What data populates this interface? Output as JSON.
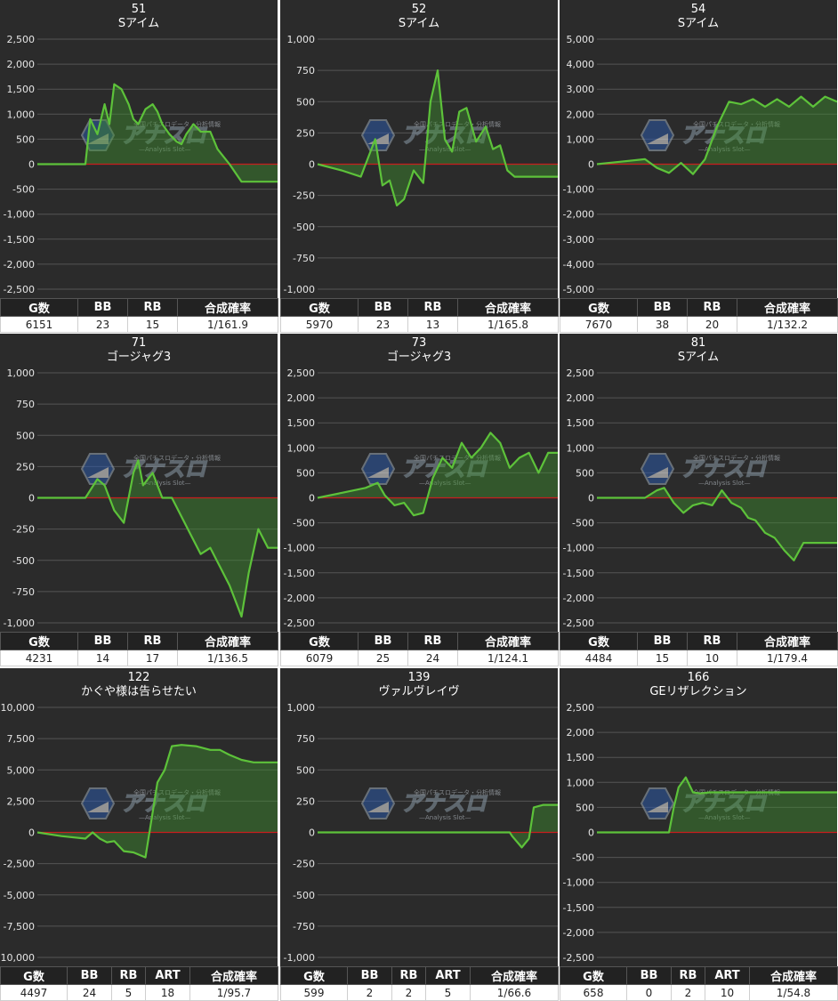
{
  "colors": {
    "line": "#5dc23a",
    "fill": "#3f8f2e",
    "zero": "#c81e1e",
    "grid": "#555555",
    "bg": "#2b2b2b"
  },
  "watermark": {
    "brand": "アナスロ",
    "sub": "—Analysis Slot—",
    "top": "全国パチスロデータ・分析情報"
  },
  "chart_data": [
    {
      "type": "line",
      "number": "51",
      "name": "Sアイム",
      "ylim": [
        -2500,
        2500
      ],
      "yticks": [
        -2500,
        -2000,
        -1500,
        -1000,
        -500,
        0,
        500,
        1000,
        1500,
        2000,
        2500
      ],
      "ytick_labels": [
        "-2,500",
        "-2,000",
        "-1,500",
        "-1,000",
        "-500",
        "0",
        "500",
        "1,000",
        "1,500",
        "2,000",
        "2,500"
      ],
      "x": [
        0,
        5,
        10,
        15,
        20,
        22,
        25,
        28,
        30,
        32,
        35,
        38,
        40,
        42,
        45,
        48,
        50,
        52,
        55,
        58,
        60,
        62,
        65,
        68,
        70,
        72,
        75,
        80,
        85,
        90,
        95,
        100
      ],
      "y": [
        0,
        0,
        0,
        0,
        0,
        900,
        600,
        1200,
        800,
        1600,
        1500,
        1200,
        900,
        800,
        1100,
        1200,
        1050,
        800,
        600,
        450,
        400,
        600,
        800,
        650,
        650,
        650,
        300,
        0,
        -350,
        -350,
        -350,
        -350
      ],
      "headers": [
        "G数",
        "BB",
        "RB",
        "合成確率"
      ],
      "stats": [
        "6151",
        "23",
        "15",
        "1/161.9"
      ]
    },
    {
      "type": "line",
      "number": "52",
      "name": "Sアイム",
      "ylim": [
        -1000,
        1000
      ],
      "yticks": [
        -1000,
        -750,
        -500,
        -250,
        0,
        250,
        500,
        750,
        1000
      ],
      "ytick_labels": [
        "-1,000",
        "-750",
        "-500",
        "-250",
        "0",
        "250",
        "500",
        "750",
        "1,000"
      ],
      "x": [
        0,
        10,
        18,
        24,
        27,
        30,
        33,
        36,
        40,
        44,
        47,
        50,
        53,
        56,
        59,
        62,
        66,
        70,
        73,
        76,
        79,
        82,
        86,
        90,
        95,
        100
      ],
      "y": [
        0,
        -50,
        -100,
        200,
        -170,
        -130,
        -330,
        -280,
        -50,
        -150,
        500,
        750,
        200,
        100,
        420,
        450,
        180,
        300,
        120,
        150,
        -50,
        -100,
        -100,
        -100,
        -100,
        -100
      ],
      "headers": [
        "G数",
        "BB",
        "RB",
        "合成確率"
      ],
      "stats": [
        "5970",
        "23",
        "13",
        "1/165.8"
      ]
    },
    {
      "type": "line",
      "number": "54",
      "name": "Sアイム",
      "ylim": [
        -5000,
        5000
      ],
      "yticks": [
        -5000,
        -4000,
        -3000,
        -2000,
        -1000,
        0,
        1000,
        2000,
        3000,
        4000,
        5000
      ],
      "ytick_labels": [
        "-5,000",
        "-4,000",
        "-3,000",
        "-2,000",
        "-1,000",
        "0",
        "1,000",
        "2,000",
        "3,000",
        "4,000",
        "5,000"
      ],
      "x": [
        0,
        10,
        20,
        25,
        30,
        35,
        40,
        45,
        50,
        55,
        60,
        65,
        70,
        75,
        80,
        85,
        90,
        95,
        100
      ],
      "y": [
        0,
        100,
        200,
        -150,
        -350,
        50,
        -400,
        200,
        1500,
        2500,
        2400,
        2600,
        2300,
        2600,
        2300,
        2700,
        2300,
        2700,
        2500
      ],
      "headers": [
        "G数",
        "BB",
        "RB",
        "合成確率"
      ],
      "stats": [
        "7670",
        "38",
        "20",
        "1/132.2"
      ]
    },
    {
      "type": "line",
      "number": "71",
      "name": "ゴージャグ3",
      "ylim": [
        -1000,
        1000
      ],
      "yticks": [
        -1000,
        -750,
        -500,
        -250,
        0,
        250,
        500,
        750,
        1000
      ],
      "ytick_labels": [
        "-1,000",
        "-750",
        "-500",
        "-250",
        "0",
        "250",
        "500",
        "750",
        "1,000"
      ],
      "x": [
        0,
        10,
        20,
        25,
        28,
        32,
        36,
        40,
        42,
        44,
        48,
        52,
        56,
        60,
        64,
        68,
        72,
        76,
        80,
        83,
        85,
        88,
        92,
        96,
        100
      ],
      "y": [
        0,
        0,
        0,
        150,
        100,
        -100,
        -200,
        200,
        300,
        100,
        200,
        0,
        0,
        -150,
        -300,
        -450,
        -400,
        -550,
        -700,
        -850,
        -950,
        -600,
        -250,
        -400,
        -400
      ],
      "headers": [
        "G数",
        "BB",
        "RB",
        "合成確率"
      ],
      "stats": [
        "4231",
        "14",
        "17",
        "1/136.5"
      ]
    },
    {
      "type": "line",
      "number": "73",
      "name": "ゴージャグ3",
      "ylim": [
        -2500,
        2500
      ],
      "yticks": [
        -2500,
        -2000,
        -1500,
        -1000,
        -500,
        0,
        500,
        1000,
        1500,
        2000,
        2500
      ],
      "ytick_labels": [
        "-2,500",
        "-2,000",
        "-1,500",
        "-1,000",
        "-500",
        "0",
        "500",
        "1,000",
        "1,500",
        "2,000",
        "2,500"
      ],
      "x": [
        0,
        10,
        20,
        25,
        28,
        32,
        36,
        40,
        44,
        48,
        52,
        56,
        60,
        64,
        68,
        72,
        76,
        80,
        84,
        88,
        92,
        96,
        100
      ],
      "y": [
        0,
        100,
        200,
        300,
        50,
        -150,
        -100,
        -350,
        -300,
        400,
        800,
        600,
        1100,
        800,
        1000,
        1300,
        1100,
        600,
        800,
        900,
        500,
        900,
        900
      ],
      "headers": [
        "G数",
        "BB",
        "RB",
        "合成確率"
      ],
      "stats": [
        "6079",
        "25",
        "24",
        "1/124.1"
      ]
    },
    {
      "type": "line",
      "number": "81",
      "name": "Sアイム",
      "ylim": [
        -2500,
        2500
      ],
      "yticks": [
        -2500,
        -2000,
        -1500,
        -1000,
        -500,
        0,
        500,
        1000,
        1500,
        2000,
        2500
      ],
      "ytick_labels": [
        "-2,500",
        "-2,000",
        "-1,500",
        "-1,000",
        "-500",
        "0",
        "500",
        "1,000",
        "1,500",
        "2,000",
        "2,500"
      ],
      "x": [
        0,
        10,
        20,
        25,
        28,
        32,
        36,
        40,
        44,
        48,
        52,
        56,
        60,
        63,
        66,
        70,
        74,
        78,
        82,
        86,
        90,
        95,
        100
      ],
      "y": [
        0,
        0,
        0,
        150,
        200,
        -100,
        -300,
        -150,
        -100,
        -150,
        150,
        -100,
        -200,
        -400,
        -450,
        -700,
        -800,
        -1050,
        -1250,
        -900,
        -900,
        -900,
        -900
      ],
      "headers": [
        "G数",
        "BB",
        "RB",
        "合成確率"
      ],
      "stats": [
        "4484",
        "15",
        "10",
        "1/179.4"
      ]
    },
    {
      "type": "line",
      "number": "122",
      "name": "かぐや様は告らせたい",
      "ylim": [
        -10000,
        10000
      ],
      "yticks": [
        -10000,
        -7500,
        -5000,
        -2500,
        0,
        2500,
        5000,
        7500,
        10000
      ],
      "ytick_labels": [
        "-10,000",
        "-7,500",
        "-5,000",
        "-2,500",
        "0",
        "2,500",
        "5,000",
        "7,500",
        "10,000"
      ],
      "x": [
        0,
        10,
        20,
        23,
        26,
        29,
        32,
        36,
        40,
        45,
        50,
        53,
        56,
        60,
        66,
        72,
        76,
        80,
        85,
        90,
        95,
        100
      ],
      "y": [
        0,
        -300,
        -500,
        0,
        -500,
        -800,
        -700,
        -1500,
        -1600,
        -2000,
        4000,
        5000,
        6900,
        7000,
        6900,
        6600,
        6600,
        6200,
        5800,
        5600,
        5600,
        5600
      ],
      "headers": [
        "G数",
        "BB",
        "RB",
        "ART",
        "合成確率"
      ],
      "stats": [
        "4497",
        "24",
        "5",
        "18",
        "1/95.7"
      ]
    },
    {
      "type": "line",
      "number": "139",
      "name": "ヴァルヴレイヴ",
      "ylim": [
        -1000,
        1000
      ],
      "yticks": [
        -1000,
        -750,
        -500,
        -250,
        0,
        250,
        500,
        750,
        1000
      ],
      "ytick_labels": [
        "-1,000",
        "-750",
        "-500",
        "-250",
        "0",
        "250",
        "500",
        "750",
        "1,000"
      ],
      "x": [
        0,
        20,
        40,
        60,
        80,
        81,
        85,
        88,
        90,
        94,
        100
      ],
      "y": [
        0,
        0,
        0,
        0,
        0,
        -30,
        -120,
        -50,
        200,
        220,
        220
      ],
      "headers": [
        "G数",
        "BB",
        "RB",
        "ART",
        "合成確率"
      ],
      "stats": [
        "599",
        "2",
        "2",
        "5",
        "1/66.6"
      ]
    },
    {
      "type": "line",
      "number": "166",
      "name": "GEリザレクション",
      "ylim": [
        -2500,
        2500
      ],
      "yticks": [
        -2500,
        -2000,
        -1500,
        -1000,
        -500,
        0,
        500,
        1000,
        1500,
        2000,
        2500
      ],
      "ytick_labels": [
        "-2,500",
        "-2,000",
        "-1,500",
        "-1,000",
        "-500",
        "0",
        "500",
        "1,000",
        "1,500",
        "2,000",
        "2,500"
      ],
      "x": [
        0,
        15,
        30,
        32,
        34,
        37,
        40,
        43,
        47,
        60,
        80,
        100
      ],
      "y": [
        0,
        0,
        0,
        500,
        900,
        1100,
        800,
        780,
        800,
        800,
        800,
        800
      ],
      "headers": [
        "G数",
        "BB",
        "RB",
        "ART",
        "合成確率"
      ],
      "stats": [
        "658",
        "0",
        "2",
        "10",
        "1/54.8"
      ]
    }
  ]
}
